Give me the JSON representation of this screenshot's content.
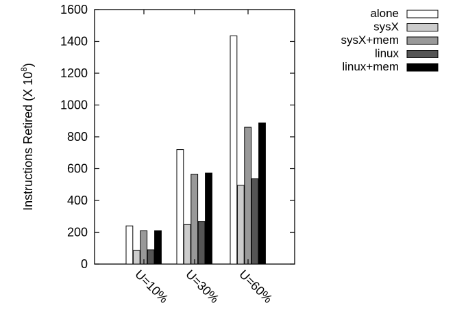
{
  "chart_data": {
    "type": "bar",
    "title": "",
    "xlabel": "",
    "ylabel": "Instructions Retired (X 10",
    "ylabel_exponent": "8",
    "ylabel_suffix": ")",
    "ylim": [
      0,
      1600
    ],
    "yticks": [
      "0",
      "200",
      "400",
      "600",
      "800",
      "1000",
      "1200",
      "1400",
      "1600"
    ],
    "categories": [
      "U=10%",
      "U=30%",
      "U=60%"
    ],
    "series": [
      {
        "name": "alone",
        "color": "#ffffff",
        "values": [
          240,
          720,
          1435
        ]
      },
      {
        "name": "sysX",
        "color": "#cccccc",
        "values": [
          85,
          248,
          495
        ]
      },
      {
        "name": "sysX+mem",
        "color": "#999999",
        "values": [
          210,
          565,
          860
        ]
      },
      {
        "name": "linux",
        "color": "#555555",
        "values": [
          90,
          268,
          537
        ]
      },
      {
        "name": "linux+mem",
        "color": "#000000",
        "values": [
          210,
          572,
          887
        ]
      }
    ],
    "grid": false,
    "legend_position": "top-right"
  }
}
